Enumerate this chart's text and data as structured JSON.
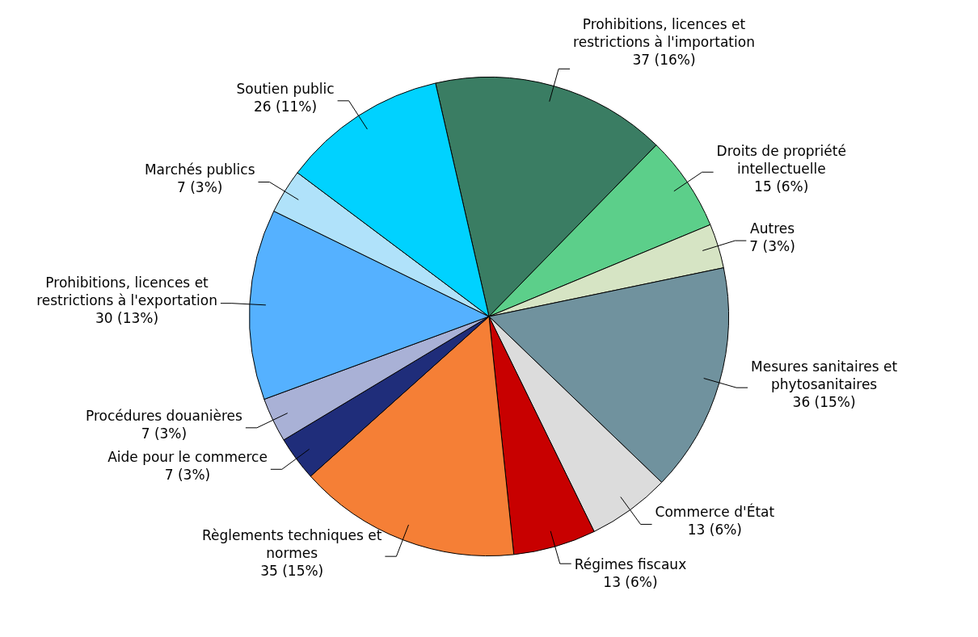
{
  "chart_data": {
    "type": "pie",
    "categories": [
      "Prohibitions, licences et restrictions à l'importation",
      "Droits de propriété intellectuelle",
      "Autres",
      "Mesures sanitaires et phytosanitaires",
      "Commerce d'État",
      "Régimes fiscaux",
      "Règlements techniques et normes",
      "Aide pour le commerce",
      "Procédures douanières",
      "Prohibitions, licences et restrictions à l'exportation",
      "Marchés publics",
      "Soutien public"
    ],
    "values": [
      37,
      15,
      7,
      36,
      13,
      13,
      35,
      7,
      7,
      30,
      7,
      26
    ],
    "value_labels": [
      "37 (16%)",
      "15 (6%)",
      "7 (3%)",
      "36 (15%)",
      "13 (6%)",
      "13 (6%)",
      "35 (15%)",
      "7 (3%)",
      "7 (3%)",
      "30 (13%)",
      "7 (3%)",
      "26 (11%)"
    ],
    "colors": [
      "#3a7d63",
      "#5ccf8a",
      "#d6e4c4",
      "#70929e",
      "#dcdcdc",
      "#c80000",
      "#f57f36",
      "#1f2d7a",
      "#a9b1d6",
      "#55b1ff",
      "#b0e2fa",
      "#00d2ff"
    ],
    "legend": false
  }
}
